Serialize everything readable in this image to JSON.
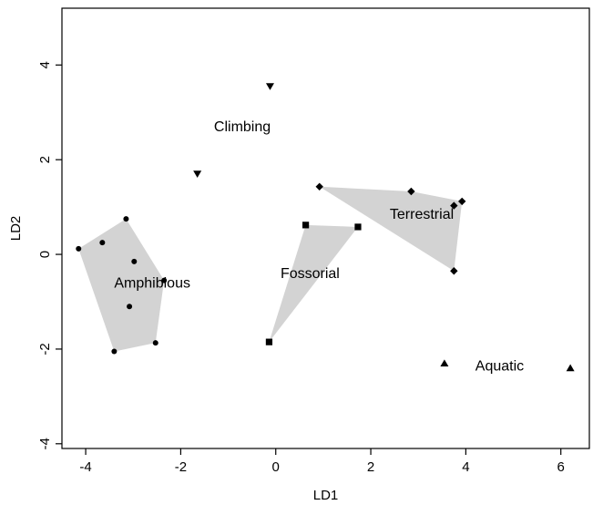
{
  "chart_data": {
    "type": "scatter",
    "title": "",
    "xlabel": "LD1",
    "ylabel": "LD2",
    "xlim": [
      -4.5,
      6.6
    ],
    "ylim": [
      -4.1,
      5.2
    ],
    "x_ticks": [
      -4,
      -2,
      0,
      2,
      4,
      6
    ],
    "y_ticks": [
      -4,
      -2,
      0,
      2,
      4
    ],
    "grid": false,
    "box": true,
    "hull_color": "#d3d3d3",
    "point_color": "#000000",
    "series": [
      {
        "name": "Amphibious",
        "marker": "circle",
        "label_at": [
          -3.4,
          -0.7
        ],
        "hull": true,
        "points": [
          {
            "x": -4.15,
            "y": 0.12
          },
          {
            "x": -3.65,
            "y": 0.25
          },
          {
            "x": -3.15,
            "y": 0.75
          },
          {
            "x": -2.98,
            "y": -0.15
          },
          {
            "x": -2.35,
            "y": -0.55
          },
          {
            "x": -3.08,
            "y": -1.1
          },
          {
            "x": -2.53,
            "y": -1.87
          },
          {
            "x": -3.4,
            "y": -2.05
          }
        ]
      },
      {
        "name": "Climbing",
        "marker": "triangle-down",
        "label_at": [
          -1.3,
          2.6
        ],
        "hull": false,
        "points": [
          {
            "x": -0.12,
            "y": 3.55
          },
          {
            "x": -1.65,
            "y": 1.7
          }
        ]
      },
      {
        "name": "Fossorial",
        "marker": "square",
        "label_at": [
          0.1,
          -0.5
        ],
        "hull": true,
        "points": [
          {
            "x": 0.63,
            "y": 0.62
          },
          {
            "x": 1.73,
            "y": 0.58
          },
          {
            "x": -0.14,
            "y": -1.85
          }
        ]
      },
      {
        "name": "Terrestrial",
        "marker": "diamond",
        "label_at": [
          2.4,
          0.75
        ],
        "hull": true,
        "points": [
          {
            "x": 0.92,
            "y": 1.43
          },
          {
            "x": 2.85,
            "y": 1.33
          },
          {
            "x": 3.75,
            "y": 1.03
          },
          {
            "x": 3.92,
            "y": 1.12
          },
          {
            "x": 3.75,
            "y": -0.35
          }
        ]
      },
      {
        "name": "Aquatic",
        "marker": "triangle-up",
        "label_at": [
          4.2,
          -2.45
        ],
        "hull": false,
        "points": [
          {
            "x": 3.55,
            "y": -2.3
          },
          {
            "x": 6.2,
            "y": -2.4
          }
        ]
      }
    ]
  }
}
